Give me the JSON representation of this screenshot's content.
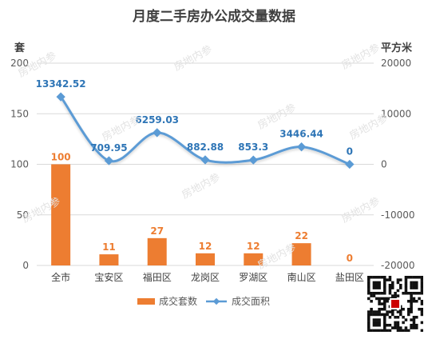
{
  "chart_data": {
    "type": "bar",
    "title": "月度二手房办公成交量数据",
    "categories": [
      "全市",
      "宝安区",
      "福田区",
      "龙岗区",
      "罗湖区",
      "南山区",
      "盐田区"
    ],
    "series": [
      {
        "name": "成交套数",
        "type": "bar",
        "axis": "left",
        "values": [
          100,
          11,
          27,
          12,
          12,
          22,
          0
        ],
        "labels": [
          "100",
          "11",
          "27",
          "12",
          "12",
          "22",
          "0"
        ]
      },
      {
        "name": "成交面积",
        "type": "line",
        "axis": "right",
        "values": [
          13342.52,
          709.95,
          6259.03,
          882.88,
          853.3,
          3446.44,
          0
        ],
        "labels": [
          "13342.52",
          "709.95",
          "6259.03",
          "882.88",
          "853.3",
          "3446.44",
          "0"
        ]
      }
    ],
    "y_left": {
      "unit_label": "套",
      "range": [
        0,
        200
      ],
      "ticks": [
        "0",
        "50",
        "100",
        "150",
        "200"
      ]
    },
    "y_right": {
      "unit_label": "平方米",
      "range": [
        -20000,
        20000
      ],
      "ticks": [
        "-20000",
        "-10000",
        "0",
        "10000",
        "20000"
      ]
    },
    "grid": true,
    "legend_position": "bottom",
    "colors": {
      "bar": "#ed7d31",
      "line": "#5b9bd5",
      "bar_label": "#ed7d31",
      "line_label": "#2e75b6"
    }
  },
  "watermark": "房地内参"
}
